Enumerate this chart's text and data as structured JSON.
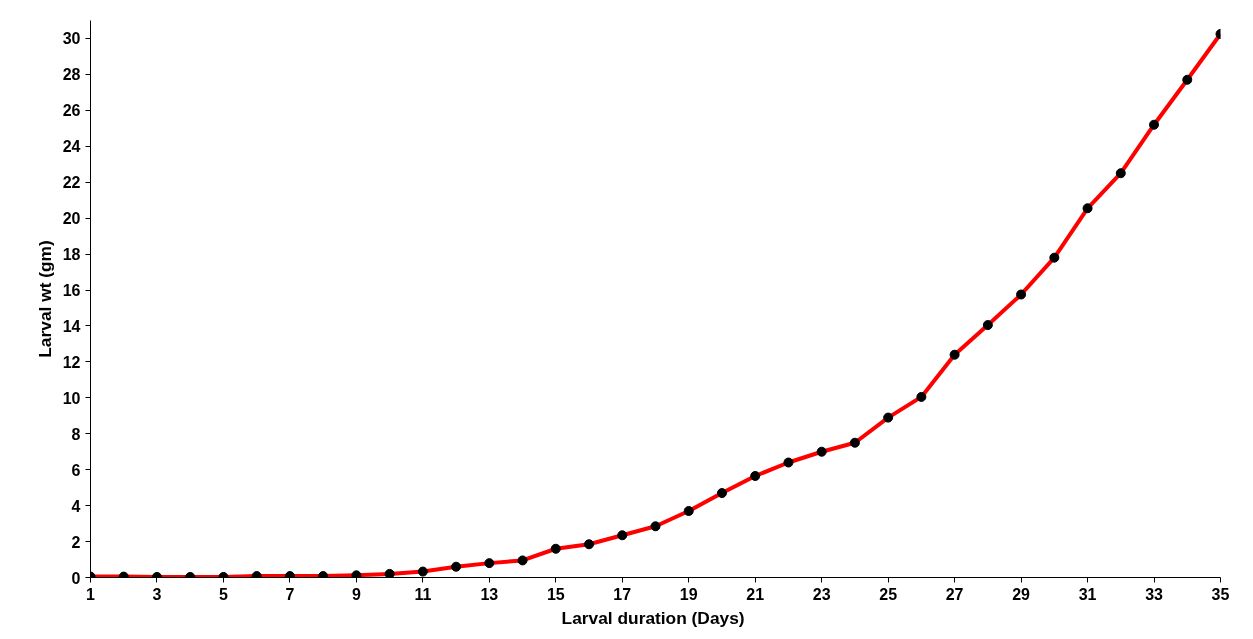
{
  "chart_data": {
    "type": "line",
    "xlabel": "Larval  duration (Days)",
    "ylabel": "Larval wt (gm)",
    "x": [
      1,
      2,
      3,
      4,
      5,
      6,
      7,
      8,
      9,
      10,
      11,
      12,
      13,
      14,
      15,
      16,
      17,
      18,
      19,
      20,
      21,
      22,
      23,
      24,
      25,
      26,
      27,
      28,
      29,
      30,
      31,
      32,
      33,
      34,
      35
    ],
    "series": [
      {
        "color": "#ff0000",
        "values": [
          0.05,
          0.05,
          0.03,
          0.03,
          0.03,
          0.08,
          0.08,
          0.08,
          0.12,
          0.2,
          0.33,
          0.6,
          0.8,
          0.95,
          1.6,
          1.85,
          2.35,
          2.85,
          3.7,
          4.7,
          5.65,
          6.4,
          7.0,
          7.5,
          8.9,
          10.05,
          12.4,
          14.05,
          15.75,
          17.8,
          20.55,
          22.5,
          25.2,
          27.7,
          30.25
        ]
      }
    ],
    "xlim": [
      1,
      35
    ],
    "ylim": [
      0,
      31
    ],
    "xticks": [
      1,
      3,
      5,
      7,
      9,
      11,
      13,
      15,
      17,
      19,
      21,
      23,
      25,
      27,
      29,
      31,
      33,
      35
    ],
    "yticks": [
      0,
      2,
      4,
      6,
      8,
      10,
      12,
      14,
      16,
      18,
      20,
      22,
      24,
      26,
      28,
      30
    ],
    "grid": false,
    "marker": "circle",
    "line_style": "solid"
  }
}
